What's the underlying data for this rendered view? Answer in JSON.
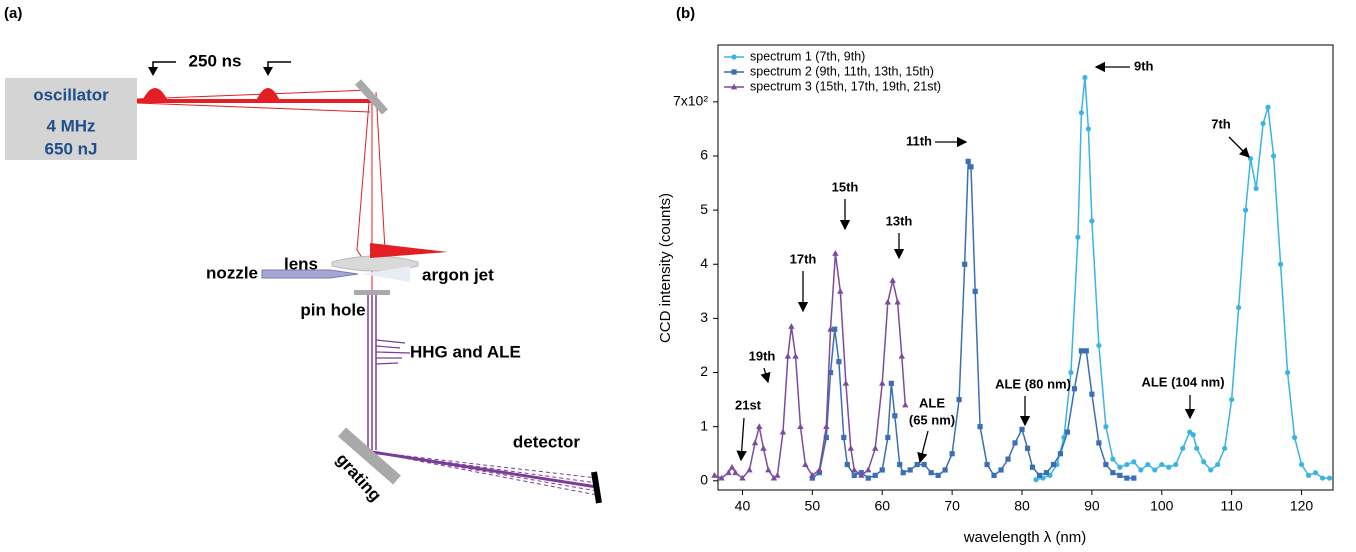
{
  "diagram": {
    "panel_label": "(a)",
    "pulse_spacing": "250 ns",
    "oscillator": [
      "oscillator",
      "4 MHz",
      "650 nJ"
    ],
    "lens": "lens",
    "nozzle": "nozzle",
    "argon_jet": "argon jet",
    "pin_hole": "pin hole",
    "hhg": "HHG and ALE",
    "grating": "grating",
    "detector": "detector"
  },
  "chart_data": {
    "type": "line",
    "panel_label": "(b)",
    "x_label": "wavelength λ (nm)",
    "y_label": "CCD intensity (counts)",
    "xlim": [
      36.5,
      124.5
    ],
    "ylim": [
      -0.17,
      8.05
    ],
    "xticks": [
      40,
      50,
      60,
      70,
      80,
      90,
      100,
      110,
      120
    ],
    "yticks": [
      0,
      1,
      2,
      3,
      4,
      5,
      6,
      {
        "value": 7,
        "label": "7x10²"
      }
    ],
    "legend": "upper left",
    "series": [
      {
        "name": "spectrum 1 (7th, 9th)",
        "color": "#3bb4e5",
        "marker": "circle",
        "x": [
          82,
          83,
          84,
          85,
          86,
          87,
          88,
          88.5,
          89,
          89.5,
          90,
          91,
          92,
          93,
          94,
          95,
          96,
          97,
          98,
          99,
          100,
          101,
          102,
          103,
          104,
          104.5,
          105,
          106,
          107,
          108,
          109,
          110,
          111,
          112,
          112.7,
          113.5,
          114.5,
          115.2,
          116,
          117,
          118,
          119,
          120,
          121,
          122,
          123,
          124
        ],
        "values": [
          0.02,
          0.05,
          0.1,
          0.3,
          0.8,
          2.0,
          4.5,
          6.8,
          7.45,
          6.5,
          4.8,
          2.5,
          1.0,
          0.4,
          0.25,
          0.3,
          0.35,
          0.2,
          0.3,
          0.2,
          0.3,
          0.25,
          0.3,
          0.6,
          0.9,
          0.85,
          0.6,
          0.35,
          0.2,
          0.3,
          0.6,
          1.5,
          3.2,
          5.0,
          5.95,
          5.4,
          6.6,
          6.9,
          6.0,
          4.0,
          2.0,
          0.8,
          0.3,
          0.1,
          0.15,
          0.05,
          0.05
        ]
      },
      {
        "name": "spectrum 2 (9th, 11th, 13th, 15th)",
        "color": "#3a6fb5",
        "marker": "square",
        "x": [
          50,
          51,
          52,
          52.6,
          53.2,
          53.8,
          54.5,
          55,
          56,
          57,
          58,
          59,
          60,
          60.8,
          61.3,
          61.8,
          62.5,
          63,
          64,
          65,
          66,
          67,
          68,
          69,
          70,
          71,
          71.8,
          72.3,
          72.7,
          73.3,
          74,
          75,
          76,
          77,
          78,
          79,
          80,
          80.8,
          81.5,
          82.5,
          83.5,
          84.5,
          85.5,
          86.5,
          87.5,
          88.5,
          89.2,
          90,
          91,
          92,
          93,
          94,
          95,
          96
        ],
        "values": [
          0.05,
          0.15,
          0.8,
          2.0,
          2.8,
          2.2,
          0.8,
          0.3,
          0.1,
          0.15,
          0.05,
          0.1,
          0.2,
          0.8,
          1.8,
          1.2,
          0.3,
          0.15,
          0.2,
          0.3,
          0.3,
          0.15,
          0.1,
          0.2,
          0.5,
          1.5,
          4.0,
          5.9,
          5.8,
          3.5,
          1.0,
          0.3,
          0.1,
          0.2,
          0.4,
          0.7,
          0.95,
          0.6,
          0.25,
          0.1,
          0.15,
          0.3,
          0.5,
          0.9,
          1.7,
          2.4,
          2.4,
          1.6,
          0.7,
          0.3,
          0.15,
          0.1,
          0.05,
          0.05
        ]
      },
      {
        "name": "spectrum 3 (15th, 17th, 19th, 21st)",
        "color": "#7b4c9e",
        "marker": "triangle",
        "x": [
          36,
          37,
          38,
          38.5,
          39,
          40,
          41,
          41.8,
          42.4,
          43,
          43.7,
          44.5,
          45,
          45.8,
          46.5,
          47,
          47.6,
          48.3,
          49,
          50,
          51,
          52,
          52.6,
          53.3,
          54,
          54.8,
          55.5,
          56,
          57,
          58,
          59,
          60,
          60.8,
          61.5,
          62.2,
          62.8,
          63.3
        ],
        "values": [
          0.1,
          0.05,
          0.15,
          0.25,
          0.15,
          0.05,
          0.2,
          0.7,
          1.0,
          0.6,
          0.2,
          0.05,
          0.1,
          0.9,
          2.3,
          2.85,
          2.3,
          1.0,
          0.3,
          0.1,
          0.2,
          1.0,
          2.8,
          4.2,
          3.5,
          1.8,
          0.6,
          0.2,
          0.1,
          0.2,
          0.6,
          1.8,
          3.3,
          3.7,
          3.3,
          2.3,
          1.4
        ]
      }
    ],
    "annotations": [
      "9th",
      "7th",
      "11th",
      "15th",
      "13th",
      "17th",
      "19th",
      "21st",
      "ALE",
      "(65 nm)",
      "ALE (80 nm)",
      "ALE (104 nm)"
    ]
  }
}
